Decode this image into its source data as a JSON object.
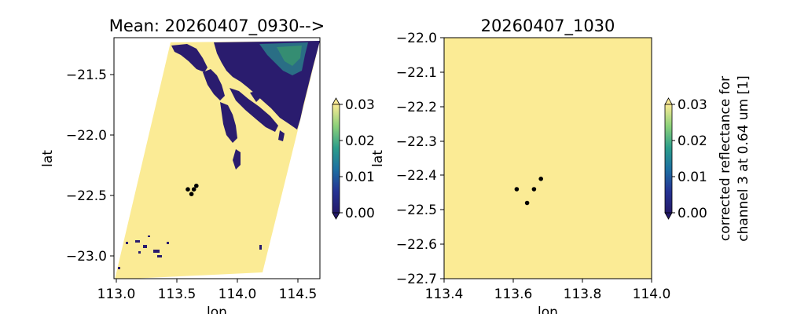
{
  "chart_data": [
    {
      "type": "heatmap",
      "title": "Mean: 20260407_0930-->",
      "xlabel": "lon",
      "ylabel": "lat",
      "xlim": [
        113.0,
        114.7
      ],
      "ylim": [
        -23.2,
        -21.15
      ],
      "xticks": [
        "113.0",
        "113.5",
        "114.0",
        "114.5"
      ],
      "yticks": [
        "−21.5",
        "−22.0",
        "−22.5",
        "−23.0"
      ],
      "points": [
        {
          "lon": 113.61,
          "lat": -22.44
        },
        {
          "lon": 113.64,
          "lat": -22.48
        },
        {
          "lon": 113.66,
          "lat": -22.44
        },
        {
          "lon": 113.68,
          "lat": -22.41
        }
      ],
      "colorbar": {
        "range": [
          0.0,
          0.03
        ],
        "ticks": [
          "0.00",
          "0.01",
          "0.02",
          "0.03"
        ],
        "extend": "both",
        "label": ""
      }
    },
    {
      "type": "heatmap",
      "title": "20260407_1030",
      "xlabel": "lon",
      "ylabel": "lat",
      "xlim": [
        113.4,
        114.0
      ],
      "ylim": [
        -22.7,
        -22.0
      ],
      "xticks": [
        "113.4",
        "113.6",
        "113.8",
        "114.0"
      ],
      "yticks": [
        "−22.0",
        "−22.1",
        "−22.2",
        "−22.3",
        "−22.4",
        "−22.5",
        "−22.6",
        "−22.7"
      ],
      "points": [
        {
          "lon": 113.61,
          "lat": -22.44
        },
        {
          "lon": 113.64,
          "lat": -22.48
        },
        {
          "lon": 113.66,
          "lat": -22.44
        },
        {
          "lon": 113.68,
          "lat": -22.41
        }
      ],
      "colorbar": {
        "range": [
          0.0,
          0.03
        ],
        "ticks": [
          "0.00",
          "0.01",
          "0.02",
          "0.03"
        ],
        "extend": "both",
        "label_line1": "corrected reflectance for",
        "label_line2": "channel 3 at 0.64 um [1]"
      }
    }
  ],
  "colors": {
    "field": "#fbeb95",
    "dense": "#2a1c6e",
    "mid": "#1f5f8b",
    "green": "#3a9a6a"
  }
}
